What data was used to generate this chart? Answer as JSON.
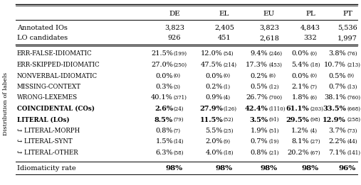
{
  "columns": [
    "DE",
    "EL",
    "EU",
    "PL",
    "PT"
  ],
  "header_rows": [
    [
      "Annotated IOs",
      "3,823",
      "2,405",
      "3,823",
      "4,843",
      "5,536"
    ],
    [
      "LO candidates",
      "926",
      "451",
      "2,618",
      "332",
      "1,997"
    ]
  ],
  "body_rows": [
    {
      "label": "ERR-FALSE-IDIOMATIC",
      "bold_label": false,
      "pct": [
        "21.5%",
        "12.0%",
        "9.4%",
        "0.0%",
        "3.8%"
      ],
      "cnt": [
        "(199)",
        "(54)",
        "(246)",
        "(0)",
        "(76)"
      ],
      "bold_values": [
        false,
        false,
        false,
        false,
        false
      ]
    },
    {
      "label": "ERR-SKIPPED-IDIOMATIC",
      "bold_label": false,
      "pct": [
        "27.0%",
        "47.5%",
        "17.3%",
        "5.4%",
        "10.7%"
      ],
      "cnt": [
        "(250)",
        "(214)",
        "(453)",
        "(18)",
        "(213)"
      ],
      "bold_values": [
        false,
        false,
        false,
        false,
        false
      ]
    },
    {
      "label": "NONVERBAL-IDIOMATIC",
      "bold_label": false,
      "pct": [
        "0.0%",
        "0.0%",
        "0.2%",
        "0.0%",
        "0.5%"
      ],
      "cnt": [
        "(0)",
        "(0)",
        "(6)",
        "(0)",
        "(9)"
      ],
      "bold_values": [
        false,
        false,
        false,
        false,
        false
      ]
    },
    {
      "label": "MISSING-CONTEXT",
      "bold_label": false,
      "pct": [
        "0.3%",
        "0.2%",
        "0.5%",
        "2.1%",
        "0.7%"
      ],
      "cnt": [
        "(3)",
        "(1)",
        "(12)",
        "(7)",
        "(13)"
      ],
      "bold_values": [
        false,
        false,
        false,
        false,
        false
      ]
    },
    {
      "label": "WRONG-LEXEMES",
      "bold_label": false,
      "pct": [
        "40.1%",
        "0.9%",
        "26.7%",
        "1.8%",
        "38.1%"
      ],
      "cnt": [
        "(371)",
        "(4)",
        "(700)",
        "(6)",
        "(760)"
      ],
      "bold_values": [
        false,
        false,
        false,
        false,
        false
      ]
    },
    {
      "label": "COINCIDENTAL (COs)",
      "bold_label": true,
      "pct": [
        "2.6%",
        "27.9%",
        "42.4%",
        "61.1%",
        "33.5%"
      ],
      "cnt": [
        "(24)",
        "(126)",
        "(1110)",
        "(203)",
        "(668)"
      ],
      "bold_values": [
        true,
        true,
        true,
        true,
        true
      ]
    },
    {
      "label": "LITERAL (LOs)",
      "bold_label": true,
      "pct": [
        "8.5%",
        "11.5%",
        "3.5%",
        "29.5%",
        "12.9%"
      ],
      "cnt": [
        "(79)",
        "(52)",
        "(91)",
        "(98)",
        "(258)"
      ],
      "bold_values": [
        true,
        true,
        true,
        true,
        true
      ]
    },
    {
      "label": "↪ LITERAL-MORPH",
      "bold_label": false,
      "pct": [
        "0.8%",
        "5.5%",
        "1.9%",
        "1.2%",
        "3.7%"
      ],
      "cnt": [
        "(7)",
        "(25)",
        "(51)",
        "(4)",
        "(73)"
      ],
      "bold_values": [
        false,
        false,
        false,
        false,
        false
      ]
    },
    {
      "label": "↪ LITERAL-SYNT",
      "bold_label": false,
      "pct": [
        "1.5%",
        "2.0%",
        "0.7%",
        "8.1%",
        "2.2%"
      ],
      "cnt": [
        "(14)",
        "(9)",
        "(19)",
        "(27)",
        "(44)"
      ],
      "bold_values": [
        false,
        false,
        false,
        false,
        false
      ]
    },
    {
      "label": "↪ LITERAL-OTHER",
      "bold_label": false,
      "pct": [
        "6.3%",
        "4.0%",
        "0.8%",
        "20.2%",
        "7.1%"
      ],
      "cnt": [
        "(58)",
        "(18)",
        "(21)",
        "(67)",
        "(141)"
      ],
      "bold_values": [
        false,
        false,
        false,
        false,
        false
      ]
    }
  ],
  "footer_row": {
    "label": "Idiomaticity rate",
    "values": [
      "98%",
      "98%",
      "98%",
      "98%",
      "96%"
    ]
  },
  "sidebar_label": "Distribution of labels"
}
